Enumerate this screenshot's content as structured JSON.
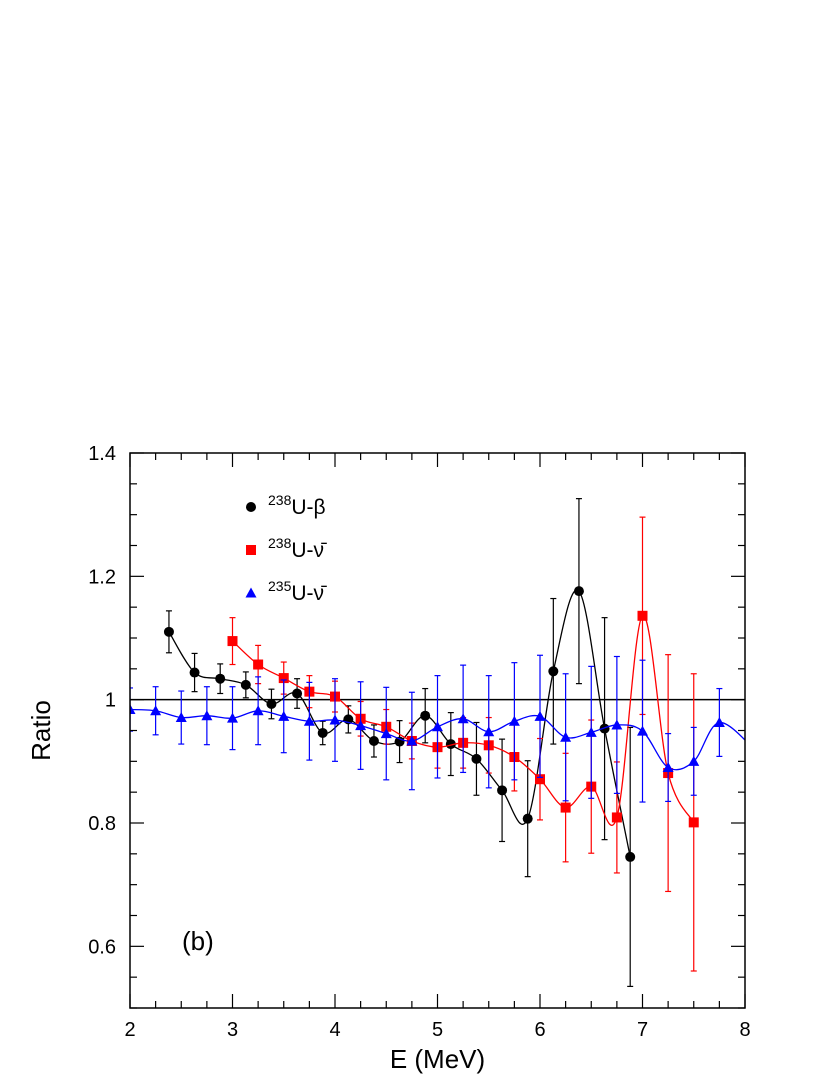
{
  "chart_data": {
    "type": "scatter",
    "title": "",
    "panel_label": "(b)",
    "xlabel": "E (MeV)",
    "ylabel": "Ratio",
    "xlim": [
      2,
      8
    ],
    "ylim": [
      0.5,
      1.4
    ],
    "x_ticks": [
      "2",
      "3",
      "4",
      "5",
      "6",
      "7",
      "8"
    ],
    "y_ticks": [
      "0.6",
      "0.8",
      "1",
      "1.2",
      "1.4"
    ],
    "y_tick_values": [
      0.6,
      0.8,
      1.0,
      1.2,
      1.4
    ],
    "reference_line_y": 1.0,
    "legend_position": "top-left",
    "series": [
      {
        "name": "U-β",
        "legend_sup": "238",
        "legend_main": "U-β",
        "color": "#000000",
        "marker": "circle",
        "x": [
          2.38,
          2.63,
          2.88,
          3.13,
          3.38,
          3.63,
          3.88,
          4.13,
          4.38,
          4.63,
          4.88,
          5.13,
          5.38,
          5.63,
          5.88,
          6.13,
          6.38,
          6.63,
          6.88
        ],
        "y": [
          1.11,
          1.044,
          1.034,
          1.024,
          0.993,
          1.01,
          0.946,
          0.968,
          0.933,
          0.932,
          0.974,
          0.928,
          0.904,
          0.853,
          0.807,
          1.046,
          1.176,
          0.953,
          0.745
        ],
        "err": [
          0.034,
          0.031,
          0.024,
          0.021,
          0.024,
          0.024,
          0.019,
          0.022,
          0.026,
          0.034,
          0.044,
          0.051,
          0.059,
          0.083,
          0.094,
          0.118,
          0.15,
          0.18,
          0.21
        ]
      },
      {
        "name": "U-ν̄ (238)",
        "legend_sup": "238",
        "legend_main": "U-ν̄",
        "color": "#ff0000",
        "marker": "square",
        "x": [
          3.0,
          3.25,
          3.5,
          3.75,
          4.0,
          4.25,
          4.5,
          4.75,
          5.0,
          5.25,
          5.5,
          5.75,
          6.0,
          6.25,
          6.5,
          6.75,
          7.0,
          7.25,
          7.5
        ],
        "y": [
          1.095,
          1.057,
          1.035,
          1.013,
          1.005,
          0.969,
          0.956,
          0.933,
          0.923,
          0.93,
          0.926,
          0.907,
          0.871,
          0.825,
          0.859,
          0.809,
          1.136,
          0.881,
          0.801
        ],
        "err": [
          0.038,
          0.031,
          0.026,
          0.026,
          0.025,
          0.028,
          0.028,
          0.029,
          0.034,
          0.041,
          0.045,
          0.055,
          0.066,
          0.088,
          0.108,
          0.09,
          0.16,
          0.192,
          0.241
        ]
      },
      {
        "name": "U-ν̄ (235)",
        "legend_sup": "235",
        "legend_main": "U-ν̄",
        "color": "#0000ff",
        "marker": "triangle",
        "x": [
          2.0,
          2.25,
          2.5,
          2.75,
          3.0,
          3.25,
          3.5,
          3.75,
          4.0,
          4.25,
          4.5,
          4.75,
          5.0,
          5.25,
          5.5,
          5.75,
          6.0,
          6.25,
          6.5,
          6.75,
          7.0,
          7.25,
          7.5,
          7.75
        ],
        "y": [
          0.984,
          0.982,
          0.971,
          0.974,
          0.97,
          0.982,
          0.973,
          0.965,
          0.967,
          0.958,
          0.945,
          0.933,
          0.956,
          0.969,
          0.948,
          0.965,
          0.973,
          0.939,
          0.947,
          0.959,
          0.949,
          0.89,
          0.9,
          0.963
        ]
      }
    ]
  }
}
